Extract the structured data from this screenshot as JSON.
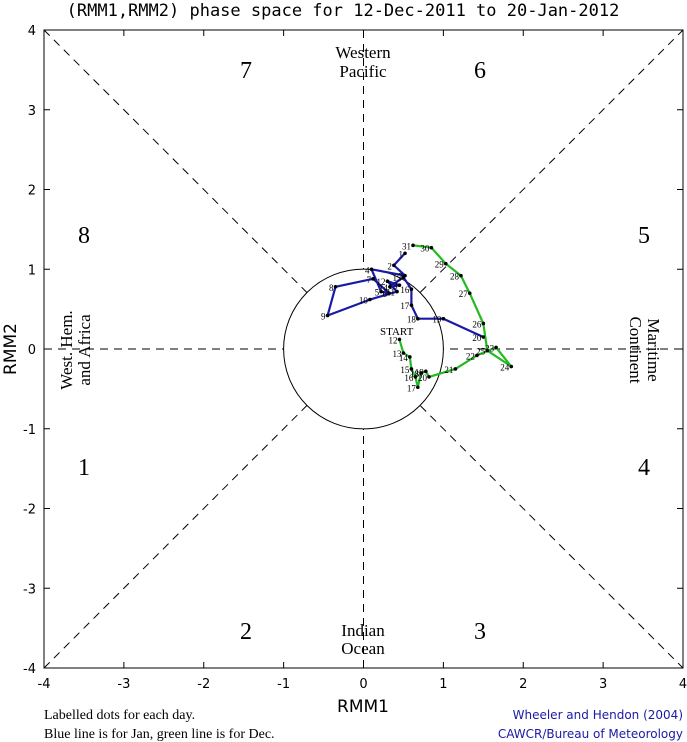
{
  "chart_data": {
    "type": "line",
    "title": "(RMM1,RMM2) phase space for 12-Dec-2011 to 20-Jan-2012",
    "xlabel": "RMM1",
    "ylabel": "RMM2",
    "xlim": [
      -4,
      4
    ],
    "ylim": [
      -4,
      4
    ],
    "xticks": [
      "-4",
      "-3",
      "-2",
      "-1",
      "0",
      "1",
      "2",
      "3",
      "4"
    ],
    "yticks": [
      "-4",
      "-3",
      "-2",
      "-1",
      "0",
      "1",
      "2",
      "3",
      "4"
    ],
    "phases": [
      "1",
      "2",
      "3",
      "4",
      "5",
      "6",
      "7",
      "8"
    ],
    "regions": {
      "top": [
        "Western",
        "Pacific"
      ],
      "bottom": [
        "Indian",
        "Ocean"
      ],
      "left": [
        "West. Hem.",
        "and Africa"
      ],
      "right": [
        "Maritime",
        "Continent"
      ]
    },
    "start_label": "START",
    "colors": {
      "jan": "#1a1aa6",
      "dec": "#22bb22",
      "axis": "#000000",
      "credit": "#1a1aa6"
    },
    "series": [
      {
        "name": "Dec",
        "color": "#22bb22",
        "points": [
          {
            "x": 0.45,
            "y": 0.12,
            "label": "12"
          },
          {
            "x": 0.5,
            "y": -0.05,
            "label": "13"
          },
          {
            "x": 0.58,
            "y": -0.1,
            "label": "14"
          },
          {
            "x": 0.6,
            "y": -0.25,
            "label": "15"
          },
          {
            "x": 0.65,
            "y": -0.35,
            "label": "16"
          },
          {
            "x": 0.68,
            "y": -0.48,
            "label": "17"
          },
          {
            "x": 0.72,
            "y": -0.3,
            "label": "18"
          },
          {
            "x": 0.78,
            "y": -0.28,
            "label": "19"
          },
          {
            "x": 0.82,
            "y": -0.35,
            "label": "20"
          },
          {
            "x": 1.15,
            "y": -0.25,
            "label": "21"
          },
          {
            "x": 1.42,
            "y": -0.08,
            "label": "22"
          },
          {
            "x": 1.66,
            "y": 0.02,
            "label": "23"
          },
          {
            "x": 1.85,
            "y": -0.22,
            "label": "24"
          },
          {
            "x": 1.55,
            "y": -0.02,
            "label": "25"
          },
          {
            "x": 1.5,
            "y": 0.32,
            "label": "26"
          },
          {
            "x": 1.33,
            "y": 0.7,
            "label": "27"
          },
          {
            "x": 1.22,
            "y": 0.92,
            "label": "28"
          },
          {
            "x": 1.03,
            "y": 1.07,
            "label": "29"
          },
          {
            "x": 0.85,
            "y": 1.27,
            "label": "30"
          },
          {
            "x": 0.62,
            "y": 1.3,
            "label": "31"
          }
        ]
      },
      {
        "name": "Jan",
        "color": "#1a1aa6",
        "points": [
          {
            "x": 0.52,
            "y": 1.2,
            "label": "1"
          },
          {
            "x": 0.38,
            "y": 1.05,
            "label": "2"
          },
          {
            "x": 0.52,
            "y": 0.92,
            "label": "3"
          },
          {
            "x": 0.1,
            "y": 1.0,
            "label": "4"
          },
          {
            "x": 0.22,
            "y": 0.72,
            "label": "5"
          },
          {
            "x": 0.32,
            "y": 0.7,
            "label": "6"
          },
          {
            "x": 0.12,
            "y": 0.88,
            "label": "7"
          },
          {
            "x": -0.35,
            "y": 0.78,
            "label": "8"
          },
          {
            "x": -0.45,
            "y": 0.42,
            "label": "9"
          },
          {
            "x": 0.08,
            "y": 0.62,
            "label": "10"
          },
          {
            "x": 0.42,
            "y": 0.72,
            "label": "11"
          },
          {
            "x": 0.3,
            "y": 0.85,
            "label": "12"
          },
          {
            "x": 0.45,
            "y": 0.8,
            "label": "13"
          },
          {
            "x": 0.33,
            "y": 0.78,
            "label": "14"
          },
          {
            "x": 0.5,
            "y": 0.9,
            "label": "15"
          },
          {
            "x": 0.6,
            "y": 0.75,
            "label": "16"
          },
          {
            "x": 0.6,
            "y": 0.55,
            "label": "17"
          },
          {
            "x": 0.68,
            "y": 0.38,
            "label": "18"
          },
          {
            "x": 1.0,
            "y": 0.38,
            "label": "19"
          },
          {
            "x": 1.5,
            "y": 0.15,
            "label": "20"
          }
        ]
      }
    ]
  },
  "legend": {
    "line1": "Labelled dots for each day.",
    "line2": "Blue line is for Jan, green line is for Dec."
  },
  "credits": {
    "line1": "Wheeler and Hendon (2004)",
    "line2": "CAWCR/Bureau of Meteorology"
  }
}
